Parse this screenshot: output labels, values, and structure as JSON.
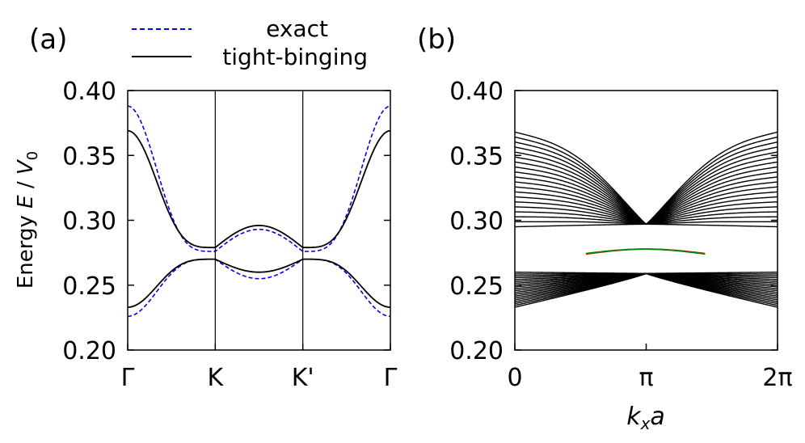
{
  "panel_labels": [
    "(a)",
    "(b)"
  ],
  "legend": {
    "exact_label": "exact",
    "tb_label": "tight-binging",
    "exact_color": "#0000ee",
    "tb_color": "#000000"
  },
  "colors": {
    "edge_state_1": "#dd0000",
    "edge_state_2": "#008800"
  },
  "chart_data": [
    {
      "type": "line",
      "panel": "(a)",
      "ylabel_main": "Energy ",
      "ylabel_var": "E",
      "ylabel_mid": " / ",
      "ylabel_V": "V",
      "ylabel_sub": "0",
      "ylim": [
        0.2,
        0.4
      ],
      "yticks": [
        0.2,
        0.25,
        0.3,
        0.35,
        0.4
      ],
      "ytick_labels": [
        "0.20",
        "0.25",
        "0.30",
        "0.35",
        "0.40"
      ],
      "xlim": [
        0,
        3
      ],
      "xticks": [
        0,
        1,
        2,
        3
      ],
      "xtick_labels": [
        "Γ",
        "K",
        "K'",
        "Γ"
      ],
      "vertical_lines_at": [
        1,
        2
      ],
      "key_values": {
        "exact_upper": {
          "Gamma": 0.388,
          "K": 0.276,
          "mid_KK": 0.293
        },
        "exact_lower": {
          "Gamma": 0.226,
          "K": 0.27,
          "mid_KK": 0.255
        },
        "tb_upper": {
          "Gamma": 0.369,
          "K": 0.279,
          "mid_KK": 0.296
        },
        "tb_lower": {
          "Gamma": 0.233,
          "K": 0.27,
          "mid_KK": 0.26
        }
      },
      "series": [
        {
          "name": "exact",
          "style": "dashed",
          "bands": [
            "exact_upper",
            "exact_lower"
          ]
        },
        {
          "name": "tight-binging",
          "style": "solid",
          "bands": [
            "tb_upper",
            "tb_lower"
          ]
        }
      ]
    },
    {
      "type": "line",
      "panel": "(b)",
      "xlabel_k": "k",
      "xlabel_sub": "x",
      "xlabel_a": "a",
      "ylim": [
        0.2,
        0.4
      ],
      "yticks": [
        0.2,
        0.25,
        0.3,
        0.35,
        0.4
      ],
      "ytick_labels": [
        "0.20",
        "0.25",
        "0.30",
        "0.35",
        "0.40"
      ],
      "xlim": [
        0,
        6.2832
      ],
      "xticks": [
        0,
        3.1416,
        6.2832
      ],
      "xtick_labels": [
        "0",
        "π",
        "2π"
      ],
      "upper_bulk": {
        "count": 20,
        "edge_top": 0.368,
        "edge_bottom": 0.295,
        "dirac_point": 0.297
      },
      "lower_bulk": {
        "count": 20,
        "edge_top": 0.26,
        "edge_bottom": 0.233,
        "dirac_point": 0.259
      },
      "edge_states": {
        "x_range": [
          1.7,
          4.55
        ],
        "value_range": [
          0.274,
          0.278
        ]
      }
    }
  ]
}
